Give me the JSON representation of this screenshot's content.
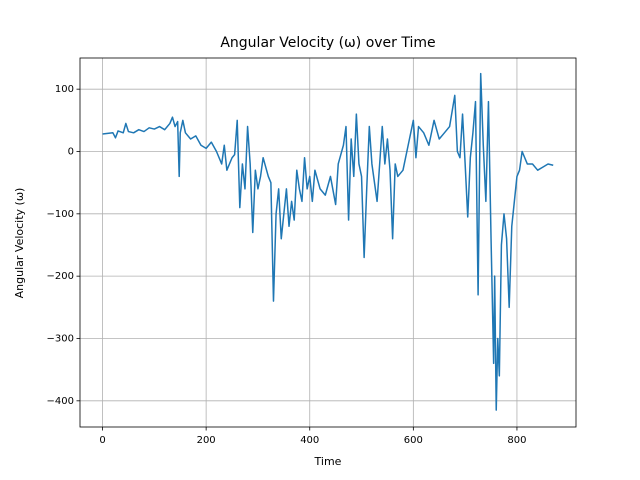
{
  "chart_data": {
    "type": "line",
    "title": "Angular Velocity (ω) over Time",
    "x_label": "Time",
    "y_label": "Angular Velocity (ω)",
    "grid": true,
    "xlim": [
      -43.5,
      914
    ],
    "ylim": [
      -442,
      150
    ],
    "xticks": [
      0,
      200,
      400,
      600,
      800
    ],
    "yticks": [
      {
        "value": -400,
        "label": "−400"
      },
      {
        "value": -300,
        "label": "−300"
      },
      {
        "value": -200,
        "label": "−200"
      },
      {
        "value": -100,
        "label": "−100"
      },
      0,
      100
    ],
    "series": [
      {
        "name": "Angular Velocity",
        "color": "#1f77b4",
        "x": [
          0,
          10,
          20,
          25,
          30,
          40,
          45,
          50,
          60,
          70,
          80,
          90,
          100,
          110,
          120,
          130,
          135,
          140,
          145,
          148,
          150,
          155,
          160,
          170,
          180,
          190,
          200,
          210,
          220,
          230,
          235,
          240,
          250,
          255,
          260,
          265,
          270,
          275,
          280,
          285,
          290,
          295,
          300,
          305,
          310,
          320,
          325,
          330,
          335,
          340,
          345,
          350,
          355,
          360,
          365,
          370,
          375,
          380,
          385,
          390,
          395,
          400,
          405,
          410,
          420,
          430,
          440,
          450,
          455,
          460,
          465,
          470,
          475,
          480,
          485,
          490,
          495,
          500,
          505,
          510,
          515,
          520,
          530,
          540,
          545,
          550,
          555,
          560,
          565,
          570,
          580,
          590,
          600,
          605,
          610,
          620,
          630,
          640,
          650,
          660,
          670,
          680,
          685,
          690,
          695,
          700,
          705,
          710,
          715,
          720,
          725,
          730,
          735,
          740,
          745,
          750,
          755,
          757,
          760,
          763,
          766,
          770,
          775,
          780,
          785,
          790,
          795,
          800,
          805,
          810,
          820,
          830,
          840,
          850,
          860,
          870
        ],
        "values": [
          28,
          29,
          30,
          22,
          33,
          30,
          45,
          32,
          30,
          35,
          32,
          38,
          36,
          40,
          35,
          45,
          55,
          40,
          48,
          -40,
          30,
          50,
          30,
          20,
          25,
          10,
          5,
          15,
          0,
          -20,
          10,
          -30,
          -10,
          -5,
          50,
          -90,
          -20,
          -60,
          40,
          -20,
          -130,
          -30,
          -60,
          -40,
          -10,
          -40,
          -50,
          -240,
          -100,
          -60,
          -140,
          -100,
          -60,
          -120,
          -80,
          -110,
          -30,
          -60,
          -80,
          -10,
          -60,
          -40,
          -80,
          -30,
          -60,
          -70,
          -40,
          -85,
          -20,
          -5,
          10,
          40,
          -110,
          20,
          -40,
          60,
          -20,
          -40,
          -170,
          -60,
          40,
          -20,
          -80,
          40,
          -20,
          20,
          -30,
          -140,
          -20,
          -40,
          -30,
          10,
          50,
          -10,
          40,
          30,
          10,
          50,
          20,
          30,
          40,
          90,
          0,
          -10,
          60,
          -20,
          -105,
          -10,
          30,
          80,
          -230,
          125,
          10,
          -80,
          80,
          -140,
          -340,
          -200,
          -415,
          -300,
          -360,
          -150,
          -100,
          -140,
          -250,
          -120,
          -80,
          -40,
          -30,
          0,
          -20,
          -20,
          -30,
          -25,
          -20,
          -22
        ]
      }
    ]
  }
}
